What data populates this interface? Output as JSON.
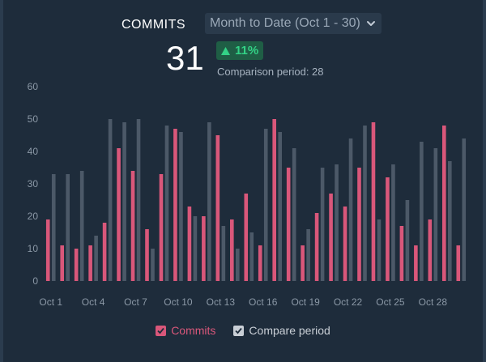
{
  "header": {
    "metric_title": "COMMITS",
    "period_label": "Month to Date (Oct 1 - 30)",
    "value": "31",
    "delta": "11%",
    "comparison_text": "Comparison period: 28"
  },
  "colors": {
    "commits": "#d9577a",
    "compare": "#4c5968",
    "delta_bg": "#1f5e45",
    "delta_fg": "#33d286"
  },
  "legend": [
    {
      "label": "Commits",
      "color": "#d9577a"
    },
    {
      "label": "Compare period",
      "color": "#c9cfd6"
    }
  ],
  "chart_data": {
    "type": "bar",
    "title": "",
    "xlabel": "",
    "ylabel": "",
    "ylim": [
      0,
      60
    ],
    "yticks": [
      0,
      10,
      20,
      30,
      40,
      50,
      60
    ],
    "categories": [
      "Oct 1",
      "Oct 2",
      "Oct 3",
      "Oct 4",
      "Oct 5",
      "Oct 6",
      "Oct 7",
      "Oct 8",
      "Oct 9",
      "Oct 10",
      "Oct 11",
      "Oct 12",
      "Oct 13",
      "Oct 14",
      "Oct 15",
      "Oct 16",
      "Oct 17",
      "Oct 18",
      "Oct 19",
      "Oct 20",
      "Oct 21",
      "Oct 22",
      "Oct 23",
      "Oct 24",
      "Oct 25",
      "Oct 26",
      "Oct 27",
      "Oct 28",
      "Oct 29",
      "Oct 30"
    ],
    "xtick_labels": [
      "Oct 1",
      "Oct 4",
      "Oct 7",
      "Oct 10",
      "Oct 13",
      "Oct 16",
      "Oct 19",
      "Oct 22",
      "Oct 25",
      "Oct 28"
    ],
    "series": [
      {
        "name": "Commits",
        "values": [
          19,
          11,
          10,
          11,
          18,
          41,
          34,
          16,
          33,
          47,
          23,
          20,
          45,
          19,
          27,
          11,
          50,
          35,
          11,
          21,
          27,
          23,
          35,
          49,
          32,
          17,
          11,
          19,
          48,
          11
        ]
      },
      {
        "name": "Compare period",
        "values": [
          33,
          33,
          34,
          14,
          50,
          49,
          50,
          10,
          48,
          46,
          20,
          49,
          17,
          10,
          15,
          47,
          46,
          41,
          16,
          35,
          36,
          44,
          48,
          19,
          36,
          25,
          43,
          41,
          37,
          44
        ]
      }
    ]
  }
}
